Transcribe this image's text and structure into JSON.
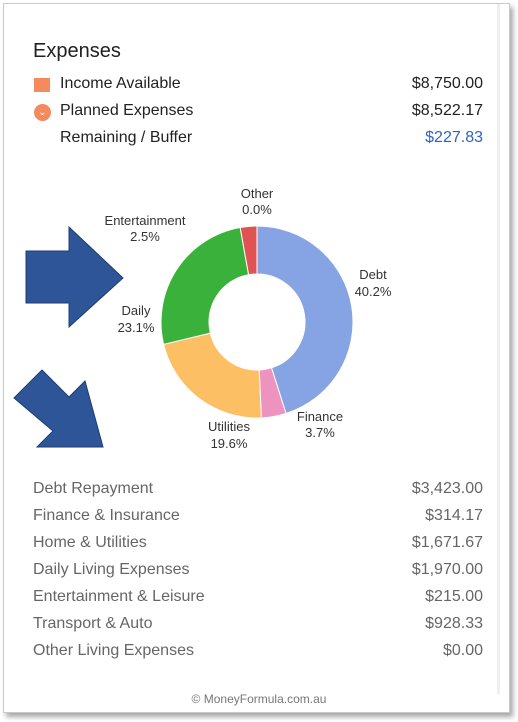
{
  "header": {
    "title": "Expenses"
  },
  "summary": {
    "income": {
      "label": "Income Available",
      "value": "$8,750.00",
      "icon": "square-icon"
    },
    "planned": {
      "label": "Planned Expenses",
      "value": "$8,522.17",
      "icon": "chevron-down-icon"
    },
    "buffer": {
      "label": "Remaining / Buffer",
      "value": "$227.83"
    }
  },
  "chart_data": {
    "type": "pie",
    "categories": [
      "Debt",
      "Finance",
      "Utilities",
      "Daily",
      "Entertainment",
      "Other"
    ],
    "values": [
      40.2,
      3.7,
      19.6,
      23.1,
      2.5,
      0.0
    ],
    "labels": [
      "40.2%",
      "3.7%",
      "19.6%",
      "23.1%",
      "2.5%",
      "0.0%"
    ],
    "colors": [
      "#86a3e3",
      "#ee92bf",
      "#fdbf63",
      "#3ab13a",
      "#df5353",
      "#c9cbce"
    ],
    "donut": true
  },
  "arrows": {
    "color": "#2e5597"
  },
  "expenses": [
    {
      "name": "Debt Repayment",
      "amount": "$3,423.00"
    },
    {
      "name": "Finance & Insurance",
      "amount": "$314.17"
    },
    {
      "name": "Home & Utilities",
      "amount": "$1,671.67"
    },
    {
      "name": "Daily Living Expenses",
      "amount": "$1,970.00"
    },
    {
      "name": "Entertainment & Leisure",
      "amount": "$215.00"
    },
    {
      "name": "Transport & Auto",
      "amount": "$928.33"
    },
    {
      "name": "Other Living Expenses",
      "amount": "$0.00"
    }
  ],
  "footer": {
    "text": "© MoneyFormula.com.au"
  }
}
